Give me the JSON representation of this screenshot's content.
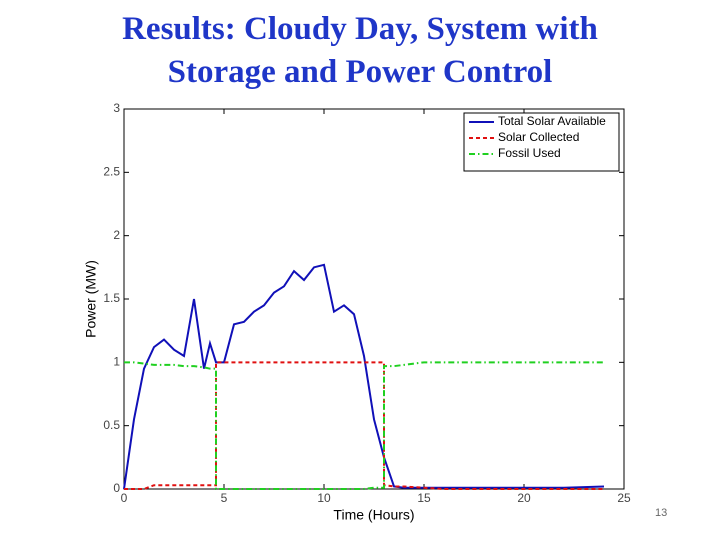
{
  "chart_data": {
    "type": "line",
    "title": "Results: Cloudy Day, System with Storage and Power Control",
    "xlabel": "Time (Hours)",
    "ylabel": "Power (MW)",
    "x": [
      0,
      0.5,
      1,
      1.5,
      2,
      2.5,
      3,
      3.5,
      4,
      4.3,
      4.6,
      4.6,
      5,
      5.5,
      6,
      6.5,
      7,
      7.5,
      8,
      8.5,
      9,
      9.5,
      10,
      10.5,
      11,
      11.5,
      12,
      12.5,
      13,
      13,
      13.5,
      14,
      15,
      16,
      18,
      20,
      22,
      24
    ],
    "series": [
      {
        "name": "Total Solar Available",
        "color": "#1010b8",
        "linestyle": "solid",
        "values": [
          0,
          0.55,
          0.95,
          1.12,
          1.18,
          1.1,
          1.05,
          1.5,
          0.95,
          1.15,
          1.0,
          1.0,
          1.0,
          1.3,
          1.32,
          1.4,
          1.45,
          1.55,
          1.6,
          1.72,
          1.65,
          1.75,
          1.77,
          1.4,
          1.45,
          1.38,
          1.05,
          0.55,
          0.25,
          0.25,
          0.02,
          0.01,
          0.01,
          0.01,
          0.01,
          0.01,
          0.01,
          0.02
        ]
      },
      {
        "name": "Solar Collected",
        "color": "#e01010",
        "linestyle": "dashed",
        "values": [
          0,
          0,
          0,
          0.03,
          0.03,
          0.03,
          0.03,
          0.03,
          0.03,
          0.03,
          0.03,
          1.0,
          1.0,
          1.0,
          1.0,
          1.0,
          1.0,
          1.0,
          1.0,
          1.0,
          1.0,
          1.0,
          1.0,
          1.0,
          1.0,
          1.0,
          1.0,
          1.0,
          1.0,
          0.03,
          0.02,
          0.02,
          0.01,
          0,
          0,
          0,
          0,
          0
        ]
      },
      {
        "name": "Fossil Used",
        "color": "#20d020",
        "linestyle": "dashdot",
        "values": [
          1.0,
          1.0,
          0.99,
          0.98,
          0.98,
          0.98,
          0.97,
          0.97,
          0.96,
          0.95,
          0.95,
          0,
          0,
          0,
          0,
          0,
          0,
          0,
          0,
          0,
          0,
          0,
          0,
          0,
          0,
          0,
          0,
          0.01,
          0.01,
          0.97,
          0.97,
          0.98,
          1.0,
          1.0,
          1.0,
          1.0,
          1.0,
          1.0
        ]
      }
    ],
    "xlim": [
      0,
      25
    ],
    "xticks": [
      0,
      5,
      10,
      15,
      20,
      25
    ],
    "ylim": [
      0,
      3
    ],
    "yticks": [
      0,
      0.5,
      1,
      1.5,
      2,
      2.5,
      3
    ],
    "grid": false,
    "legend": "top-right"
  },
  "slide_number": 13
}
